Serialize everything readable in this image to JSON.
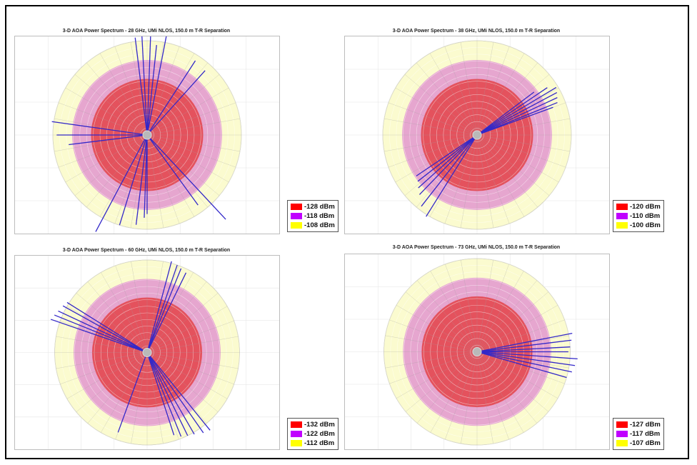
{
  "colors": {
    "outer": "#fbfbcf",
    "middle": "#e6a6cf",
    "inner": "#e4525d",
    "ray": "#3328c8",
    "swatch_inner": "#ff0000",
    "swatch_middle": "#c000ff",
    "swatch_outer": "#ffff00"
  },
  "chart_data": [
    {
      "type": "polar",
      "title": "3-D AOA Power Spectrum - 28 GHz, UMi NLOS, 150.0 m T-R Separation",
      "legend": [
        "-128 dBm",
        "-118 dBm",
        "-108 dBm"
      ],
      "rays": [
        {
          "azimuth_deg": 93,
          "power_dBm": -99
        },
        {
          "azimuth_deg": 88,
          "power_dBm": -101
        },
        {
          "azimuth_deg": 79,
          "power_dBm": -104
        },
        {
          "azimuth_deg": 97,
          "power_dBm": -106
        },
        {
          "azimuth_deg": 84,
          "power_dBm": -110
        },
        {
          "azimuth_deg": 57,
          "power_dBm": -111
        },
        {
          "azimuth_deg": 48,
          "power_dBm": -112
        },
        {
          "azimuth_deg": 172,
          "power_dBm": -107
        },
        {
          "azimuth_deg": 180,
          "power_dBm": -110
        },
        {
          "azimuth_deg": 187,
          "power_dBm": -116
        },
        {
          "azimuth_deg": 242,
          "power_dBm": -100
        },
        {
          "azimuth_deg": 253,
          "power_dBm": -108
        },
        {
          "azimuth_deg": 263,
          "power_dBm": -110
        },
        {
          "azimuth_deg": 268,
          "power_dBm": -114
        },
        {
          "azimuth_deg": 270,
          "power_dBm": -116
        },
        {
          "azimuth_deg": 313,
          "power_dBm": -97
        },
        {
          "azimuth_deg": 306,
          "power_dBm": -112
        }
      ]
    },
    {
      "type": "polar",
      "title": "3-D AOA Power Spectrum - 38 GHz, UMi NLOS, 150.0 m T-R Separation",
      "legend": [
        "-120 dBm",
        "-110 dBm",
        "-100 dBm"
      ],
      "rays": [
        {
          "azimuth_deg": 31,
          "power_dBm": -101
        },
        {
          "azimuth_deg": 28,
          "power_dBm": -102
        },
        {
          "azimuth_deg": 25,
          "power_dBm": -103
        },
        {
          "azimuth_deg": 22,
          "power_dBm": -104
        },
        {
          "azimuth_deg": 34,
          "power_dBm": -105
        },
        {
          "azimuth_deg": 20,
          "power_dBm": -107
        },
        {
          "azimuth_deg": 37,
          "power_dBm": -112
        },
        {
          "azimuth_deg": 238,
          "power_dBm": -99
        },
        {
          "azimuth_deg": 232,
          "power_dBm": -102
        },
        {
          "azimuth_deg": 226,
          "power_dBm": -106
        },
        {
          "azimuth_deg": 222,
          "power_dBm": -108
        },
        {
          "azimuth_deg": 218,
          "power_dBm": -110
        },
        {
          "azimuth_deg": 214,
          "power_dBm": -111
        }
      ]
    },
    {
      "type": "polar",
      "title": "3-D AOA Power Spectrum - 60 GHz, UMi NLOS, 150.0 m T-R Separation",
      "legend": [
        "-132 dBm",
        "-122 dBm",
        "-112 dBm"
      ],
      "rays": [
        {
          "azimuth_deg": 161,
          "power_dBm": -107
        },
        {
          "azimuth_deg": 158,
          "power_dBm": -108
        },
        {
          "azimuth_deg": 155,
          "power_dBm": -109
        },
        {
          "azimuth_deg": 151,
          "power_dBm": -110
        },
        {
          "azimuth_deg": 148,
          "power_dBm": -111
        },
        {
          "azimuth_deg": 75,
          "power_dBm": -111
        },
        {
          "azimuth_deg": 71,
          "power_dBm": -112
        },
        {
          "azimuth_deg": 68,
          "power_dBm": -113
        },
        {
          "azimuth_deg": 64,
          "power_dBm": -114
        },
        {
          "azimuth_deg": 309,
          "power_dBm": -108
        },
        {
          "azimuth_deg": 305,
          "power_dBm": -109
        },
        {
          "azimuth_deg": 300,
          "power_dBm": -111
        },
        {
          "azimuth_deg": 296,
          "power_dBm": -112
        },
        {
          "azimuth_deg": 292,
          "power_dBm": -113
        },
        {
          "azimuth_deg": 288,
          "power_dBm": -115
        },
        {
          "azimuth_deg": 250,
          "power_dBm": -116
        }
      ]
    },
    {
      "type": "polar",
      "title": "3-D AOA Power Spectrum - 73 GHz, UMi NLOS, 150.0 m T-R Separation",
      "legend": [
        "-127 dBm",
        "-117 dBm",
        "-107 dBm"
      ],
      "rays": [
        {
          "azimuth_deg": 11,
          "power_dBm": -105
        },
        {
          "azimuth_deg": 7,
          "power_dBm": -106
        },
        {
          "azimuth_deg": 3,
          "power_dBm": -107
        },
        {
          "azimuth_deg": 0,
          "power_dBm": -108
        },
        {
          "azimuth_deg": 356,
          "power_dBm": -103
        },
        {
          "azimuth_deg": 352,
          "power_dBm": -104
        },
        {
          "azimuth_deg": 348,
          "power_dBm": -105
        },
        {
          "azimuth_deg": 344,
          "power_dBm": -107
        }
      ]
    }
  ]
}
